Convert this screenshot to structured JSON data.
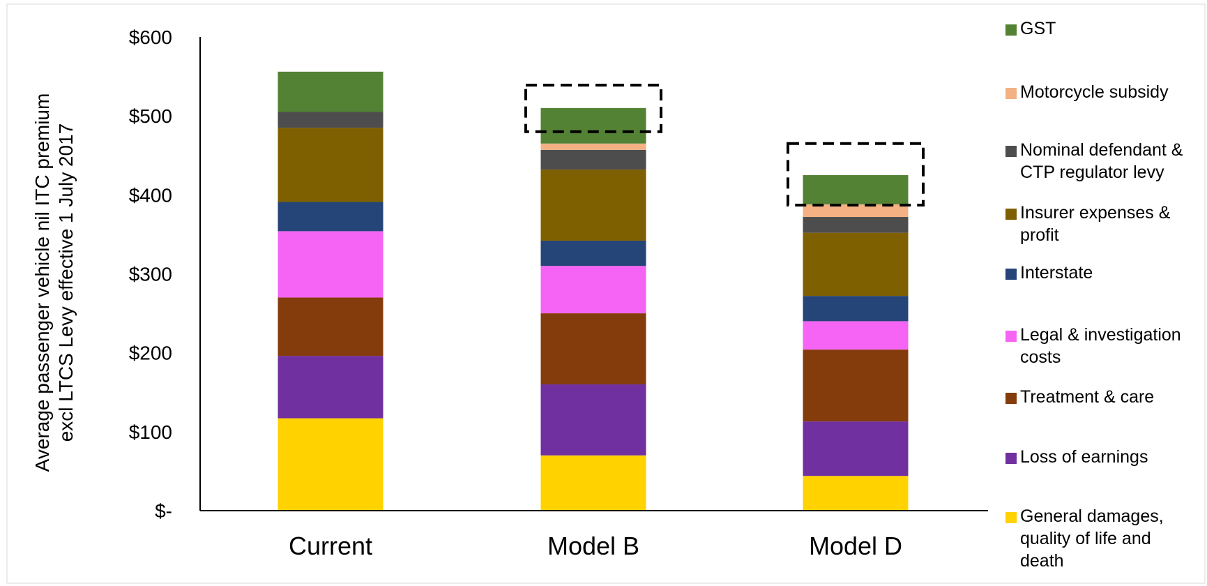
{
  "chart_data": {
    "type": "bar",
    "stacked": true,
    "categories": [
      "Current",
      "Model B",
      "Model D"
    ],
    "ylabel_lines": [
      "Average passenger vehicle nil ITC premium",
      "excl LTCS Levy effective 1 July 2017"
    ],
    "ylim": [
      0,
      600
    ],
    "yticks": [
      {
        "value": 600,
        "label": "$600"
      },
      {
        "value": 500,
        "label": "$500"
      },
      {
        "value": 400,
        "label": "$400"
      },
      {
        "value": 300,
        "label": "$300"
      },
      {
        "value": 200,
        "label": "$200"
      },
      {
        "value": 100,
        "label": "$100"
      },
      {
        "value": 0,
        "label": "$-"
      }
    ],
    "grid": false,
    "legend_position": "right",
    "series": [
      {
        "name_lines": [
          "General damages,",
          "quality of life and",
          "death"
        ],
        "color": "#FFD200",
        "values": [
          117,
          70,
          44
        ]
      },
      {
        "name_lines": [
          "Loss of earnings"
        ],
        "color": "#7030A0",
        "values": [
          79,
          90,
          69
        ]
      },
      {
        "name_lines": [
          "Treatment & care"
        ],
        "color": "#843C0C",
        "values": [
          74,
          90,
          91
        ]
      },
      {
        "name_lines": [
          "Legal & investigation",
          "costs"
        ],
        "color": "#F564F5",
        "values": [
          84,
          60,
          36
        ]
      },
      {
        "name_lines": [
          "Interstate"
        ],
        "color": "#254478",
        "values": [
          37,
          32,
          32
        ]
      },
      {
        "name_lines": [
          "Insurer expenses &",
          "profit"
        ],
        "color": "#7F6000",
        "values": [
          94,
          90,
          80
        ]
      },
      {
        "name_lines": [
          "Nominal defendant &",
          "CTP regulator levy"
        ],
        "color": "#4D4D4D",
        "values": [
          20,
          25,
          20
        ]
      },
      {
        "name_lines": [
          "Motorcycle subsidy"
        ],
        "color": "#F4B183",
        "values": [
          0,
          8,
          16
        ]
      },
      {
        "name_lines": [
          "GST"
        ],
        "color": "#548235",
        "values": [
          51,
          45,
          37
        ]
      }
    ],
    "highlighted": [
      {
        "category": "Model B",
        "from": 480,
        "to": 539
      },
      {
        "category": "Model D",
        "from": 387,
        "to": 465
      }
    ]
  }
}
